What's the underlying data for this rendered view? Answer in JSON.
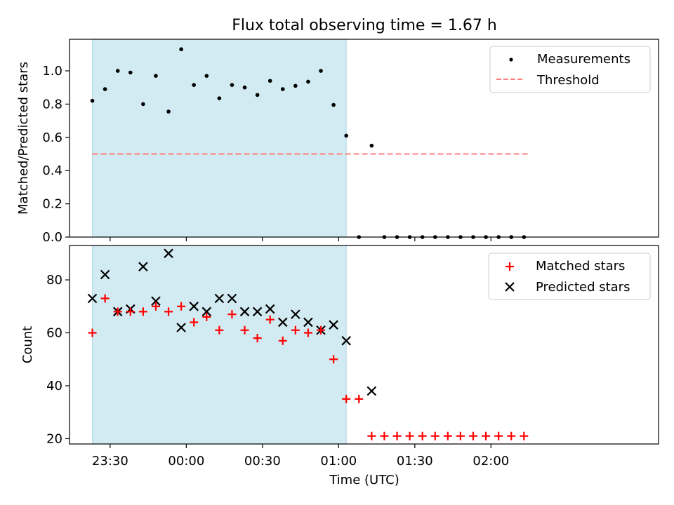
{
  "title": "Flux total observing time = 1.67 h",
  "colors": {
    "shade": "#add8e6",
    "threshold": "#ff7f7f",
    "measurement": "#000000",
    "matched": "#ff0000",
    "predicted": "#000000"
  },
  "chart_data": [
    {
      "type": "scatter",
      "ylabel": "Matched/Predicted stars",
      "ylim": [
        0,
        1.19
      ],
      "yticks": [
        0.0,
        0.2,
        0.4,
        0.6,
        0.8,
        1.0
      ],
      "ytick_labels": [
        "0.0",
        "0.2",
        "0.4",
        "0.6",
        "0.8",
        "1.0"
      ],
      "xlim_minutes": [
        -46,
        186
      ],
      "shaded_span_minutes": [
        -37,
        63
      ],
      "legend": {
        "placement": "top-right",
        "entries": [
          "Measurements",
          "Threshold"
        ]
      },
      "threshold": {
        "name": "Threshold",
        "value": 0.5,
        "x_minutes": [
          -37,
          135
        ]
      },
      "series": [
        {
          "name": "Measurements",
          "x_minutes": [
            -37,
            -32,
            -27,
            -22,
            -17,
            -12,
            -7,
            -2,
            3,
            8,
            13,
            18,
            23,
            28,
            33,
            38,
            43,
            48,
            53,
            58,
            63,
            68,
            73,
            78,
            83,
            88,
            93,
            98,
            103,
            108,
            113,
            118,
            123,
            128,
            133
          ],
          "values": [
            0.82,
            0.89,
            1.0,
            0.99,
            0.8,
            0.97,
            0.755,
            1.13,
            0.915,
            0.97,
            0.835,
            0.915,
            0.9,
            0.855,
            0.94,
            0.89,
            0.91,
            0.935,
            1.0,
            0.795,
            0.61,
            0.0,
            0.55,
            0.0,
            0.0,
            0.0,
            0.0,
            0.0,
            0.0,
            0.0,
            0.0,
            0.0,
            0.0,
            0.0,
            0.0
          ]
        }
      ]
    },
    {
      "type": "scatter",
      "ylabel": "Count",
      "xlabel": "Time (UTC)",
      "ylim": [
        18,
        93
      ],
      "yticks": [
        20,
        40,
        60,
        80
      ],
      "ytick_labels": [
        "20",
        "40",
        "60",
        "80"
      ],
      "xlim_minutes": [
        -46,
        186
      ],
      "xticks_minutes": [
        -30,
        0,
        30,
        60,
        90,
        120
      ],
      "xtick_labels": [
        "23:30",
        "00:00",
        "00:30",
        "01:00",
        "01:30",
        "02:00"
      ],
      "shaded_span_minutes": [
        -37,
        63
      ],
      "legend": {
        "placement": "top-right",
        "entries": [
          "Matched stars",
          "Predicted stars"
        ]
      },
      "series": [
        {
          "name": "Matched stars",
          "marker": "+",
          "x_minutes": [
            -37,
            -32,
            -27,
            -22,
            -17,
            -12,
            -7,
            -2,
            3,
            8,
            13,
            18,
            23,
            28,
            33,
            38,
            43,
            48,
            53,
            58,
            63,
            68,
            73,
            78,
            83,
            88,
            93,
            98,
            103,
            108,
            113,
            118,
            123,
            128,
            133
          ],
          "values": [
            60,
            73,
            68,
            68,
            68,
            70,
            68,
            70,
            64,
            66,
            61,
            67,
            61,
            58,
            65,
            57,
            61,
            60,
            61,
            50,
            35,
            35,
            21,
            21,
            21,
            21,
            21,
            21,
            21,
            21,
            21,
            21,
            21,
            21,
            21
          ]
        },
        {
          "name": "Predicted stars",
          "marker": "x",
          "x_minutes": [
            -37,
            -32,
            -27,
            -22,
            -17,
            -12,
            -7,
            -2,
            3,
            8,
            13,
            18,
            23,
            28,
            33,
            38,
            43,
            48,
            53,
            58,
            63,
            73
          ],
          "values": [
            73,
            82,
            68,
            69,
            85,
            72,
            90,
            62,
            70,
            68,
            73,
            73,
            68,
            68,
            69,
            64,
            67,
            64,
            61,
            63,
            57,
            38
          ]
        }
      ]
    }
  ]
}
